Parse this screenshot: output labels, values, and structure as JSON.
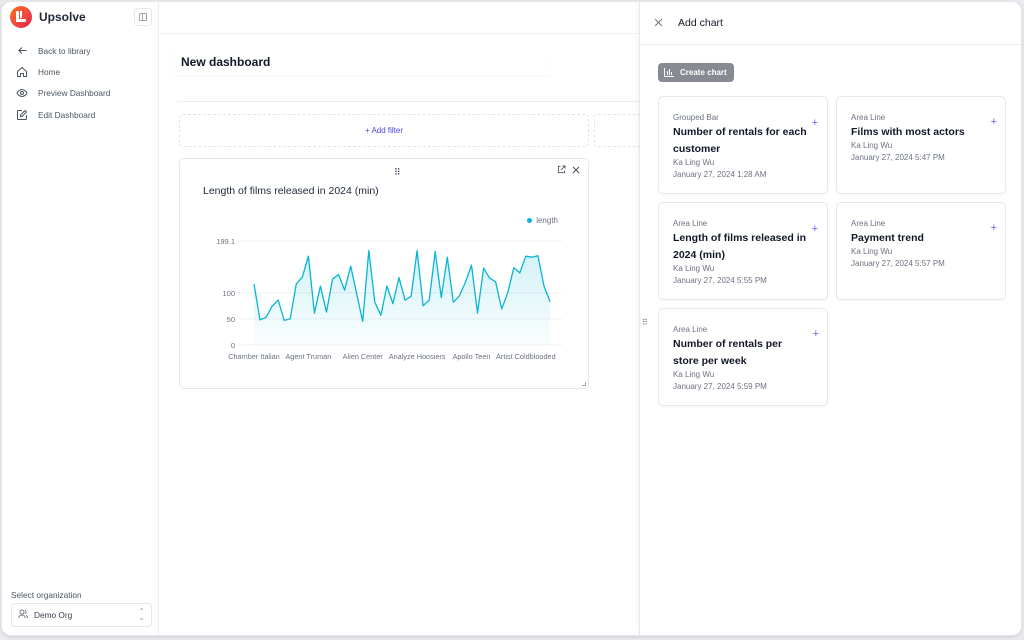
{
  "sidebar": {
    "brand": "Upsolve",
    "items": [
      {
        "label": "Back to library",
        "icon": "arrow-left-icon"
      },
      {
        "label": "Home",
        "icon": "home-icon"
      },
      {
        "label": "Preview Dashboard",
        "icon": "eye-icon"
      },
      {
        "label": "Edit Dashboard",
        "icon": "edit-icon"
      }
    ],
    "org_label": "Select organization",
    "org_value": "Demo Org"
  },
  "main": {
    "dashboard_title": "New dashboard",
    "add_filter_label": "+ Add filter",
    "chart_card": {
      "title": "Length of films released in 2024 (min)",
      "legend": "length"
    }
  },
  "panel": {
    "title": "Add chart",
    "create_label": "Create chart",
    "cards": [
      {
        "type": "Grouped Bar",
        "name": "Number of rentals for each customer",
        "author": "Ka Ling Wu",
        "date": "January 27, 2024 1:28 AM"
      },
      {
        "type": "Area Line",
        "name": "Films with most actors",
        "author": "Ka Ling Wu",
        "date": "January 27, 2024 5:47 PM"
      },
      {
        "type": "Area Line",
        "name": "Length of films released in 2024 (min)",
        "author": "Ka Ling Wu",
        "date": "January 27, 2024 5:55 PM"
      },
      {
        "type": "Area Line",
        "name": "Payment trend",
        "author": "Ka Ling Wu",
        "date": "January 27, 2024 5:57 PM"
      },
      {
        "type": "Area Line",
        "name": "Number of rentals per store per week",
        "author": "Ka Ling Wu",
        "date": "January 27, 2024 5:59 PM"
      }
    ]
  },
  "colors": {
    "accent": "#4f46e5",
    "line": "#06b6d4",
    "plus": "#6366f1",
    "create_button": "#868a93"
  },
  "chart_data": {
    "type": "area",
    "title": "Length of films released in 2024 (min)",
    "xlabel": "",
    "ylabel": "",
    "ylim": [
      0,
      199.1
    ],
    "yticks": [
      0,
      50,
      100,
      199.1
    ],
    "grid": true,
    "legend_position": "top-right",
    "x_tick_labels": [
      "Chamber Italian",
      "Agent Truman",
      "Alien Center",
      "Analyze Hoosiers",
      "Apollo Teen",
      "Artist Coldblooded"
    ],
    "x_tick_indices": [
      0,
      9,
      18,
      27,
      36,
      45
    ],
    "series": [
      {
        "name": "length",
        "color": "#06b6d4",
        "values": [
          117,
          48,
          53,
          74,
          86,
          47,
          50,
          117,
          130,
          170,
          61,
          113,
          63,
          126,
          135,
          105,
          151,
          98,
          45,
          181,
          82,
          57,
          113,
          79,
          129,
          86,
          93,
          181,
          75,
          86,
          179,
          91,
          168,
          82,
          94,
          120,
          153,
          61,
          147,
          128,
          121,
          69,
          100,
          148,
          138,
          170,
          168,
          171,
          113,
          83
        ]
      }
    ]
  }
}
